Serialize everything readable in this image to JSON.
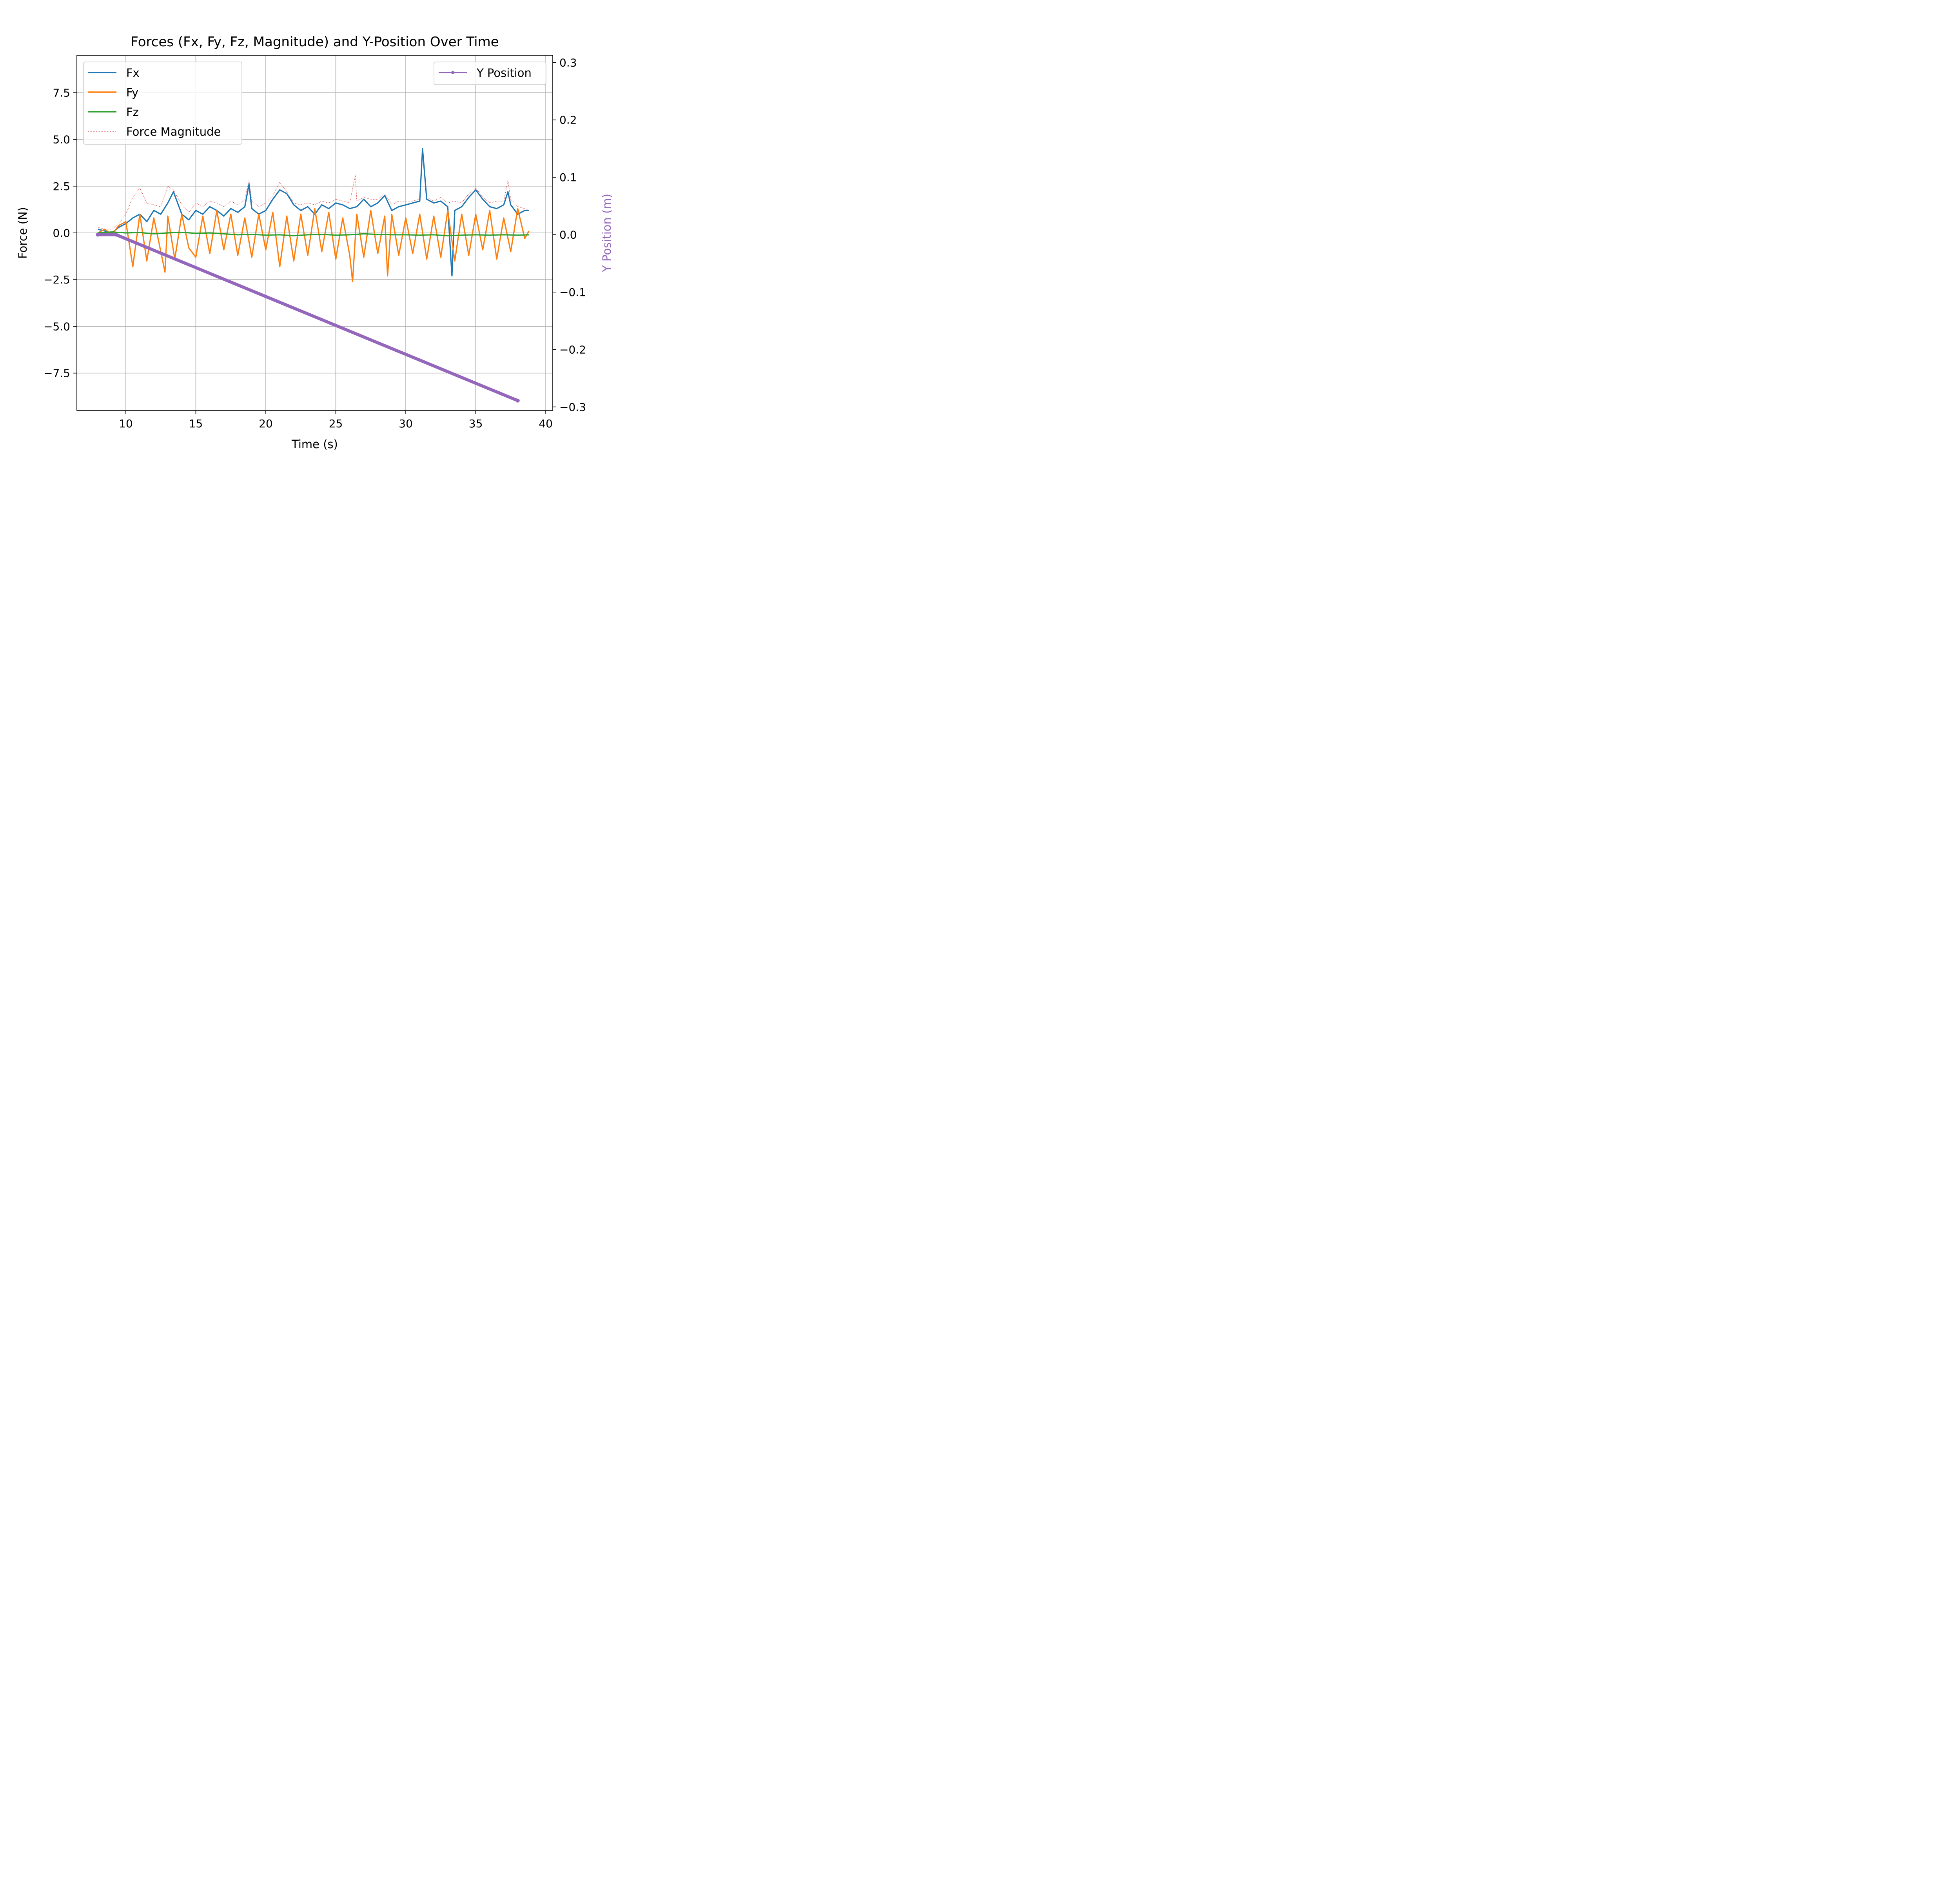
{
  "chart_data": {
    "type": "line",
    "title": "Forces (Fx, Fy, Fz, Magnitude) and Y-Position Over Time",
    "xlabel": "Time (s)",
    "ylabel": "Force (N)",
    "y2label": "Y Position (m)",
    "xlim": [
      6.5,
      40.5
    ],
    "ylim": [
      -9.5,
      9.5
    ],
    "y2lim": [
      -0.3063,
      0.3125
    ],
    "xticks": [
      10,
      15,
      20,
      25,
      30,
      35,
      40
    ],
    "xtick_labels": [
      "10",
      "15",
      "20",
      "25",
      "30",
      "35",
      "40"
    ],
    "yticks": [
      -7.5,
      -5.0,
      -2.5,
      0.0,
      2.5,
      5.0,
      7.5
    ],
    "ytick_labels": [
      "−7.5",
      "−5.0",
      "−2.5",
      "0.0",
      "2.5",
      "5.0",
      "7.5"
    ],
    "y2ticks": [
      -0.3,
      -0.2,
      -0.1,
      0.0,
      0.1,
      0.2,
      0.3
    ],
    "y2tick_labels": [
      "−0.3",
      "−0.2",
      "−0.1",
      "0.0",
      "0.1",
      "0.2",
      "0.3"
    ],
    "grid": true,
    "legend_left_placement": "upper-left",
    "legend_right_placement": "upper-right",
    "series": [
      {
        "name": "Fx",
        "axis": "left",
        "color": "#1f77b4",
        "style": "solid",
        "x": [
          8.0,
          8.5,
          9.0,
          9.5,
          10.0,
          10.5,
          11.0,
          11.5,
          12.0,
          12.5,
          13.0,
          13.4,
          14.0,
          14.5,
          15.0,
          15.5,
          16.0,
          16.5,
          17.0,
          17.5,
          18.0,
          18.5,
          18.8,
          19.0,
          19.5,
          20.0,
          20.5,
          21.0,
          21.5,
          22.0,
          22.5,
          23.0,
          23.5,
          24.0,
          24.5,
          25.0,
          25.5,
          26.0,
          26.5,
          27.0,
          27.5,
          28.0,
          28.5,
          29.0,
          29.5,
          30.0,
          30.5,
          31.0,
          31.2,
          31.5,
          32.0,
          32.5,
          33.0,
          33.3,
          33.5,
          34.0,
          34.5,
          35.0,
          35.5,
          36.0,
          36.5,
          37.0,
          37.3,
          37.5,
          38.0,
          38.5,
          38.8
        ],
        "y": [
          0.2,
          0.1,
          0.0,
          0.3,
          0.5,
          0.8,
          1.0,
          0.6,
          1.2,
          1.0,
          1.6,
          2.2,
          1.0,
          0.7,
          1.2,
          1.0,
          1.4,
          1.2,
          0.9,
          1.3,
          1.1,
          1.4,
          2.6,
          1.3,
          1.0,
          1.2,
          1.8,
          2.3,
          2.1,
          1.5,
          1.2,
          1.4,
          1.0,
          1.5,
          1.3,
          1.6,
          1.5,
          1.3,
          1.4,
          1.8,
          1.4,
          1.6,
          2.0,
          1.2,
          1.4,
          1.5,
          1.6,
          1.7,
          4.5,
          1.8,
          1.6,
          1.7,
          1.4,
          -2.3,
          1.2,
          1.4,
          1.9,
          2.3,
          1.8,
          1.4,
          1.3,
          1.5,
          2.2,
          1.5,
          1.0,
          1.2,
          1.2
        ]
      },
      {
        "name": "Fy",
        "axis": "left",
        "color": "#ff7f0e",
        "style": "solid",
        "x": [
          8.0,
          8.5,
          9.0,
          9.5,
          10.0,
          10.5,
          11.0,
          11.5,
          12.0,
          12.5,
          12.8,
          13.0,
          13.5,
          14.0,
          14.5,
          15.0,
          15.5,
          16.0,
          16.5,
          17.0,
          17.5,
          18.0,
          18.5,
          19.0,
          19.5,
          20.0,
          20.5,
          21.0,
          21.5,
          22.0,
          22.5,
          23.0,
          23.5,
          24.0,
          24.5,
          25.0,
          25.5,
          26.0,
          26.2,
          26.5,
          27.0,
          27.5,
          28.0,
          28.5,
          28.7,
          29.0,
          29.5,
          30.0,
          30.5,
          31.0,
          31.5,
          32.0,
          32.5,
          33.0,
          33.5,
          34.0,
          34.5,
          35.0,
          35.5,
          36.0,
          36.5,
          37.0,
          37.5,
          38.0,
          38.5,
          38.8
        ],
        "y": [
          0.0,
          0.2,
          -0.1,
          0.4,
          0.6,
          -1.8,
          1.0,
          -1.5,
          0.8,
          -1.0,
          -2.1,
          0.9,
          -1.4,
          1.0,
          -0.8,
          -1.3,
          0.9,
          -1.1,
          1.2,
          -0.9,
          1.0,
          -1.2,
          0.8,
          -1.3,
          1.0,
          -0.9,
          1.1,
          -1.8,
          0.9,
          -1.5,
          1.0,
          -1.2,
          1.3,
          -1.0,
          1.1,
          -1.4,
          0.8,
          -1.2,
          -2.6,
          1.0,
          -1.3,
          1.2,
          -1.1,
          0.9,
          -2.3,
          1.0,
          -1.2,
          0.8,
          -1.1,
          1.0,
          -1.4,
          0.9,
          -1.3,
          1.2,
          -1.5,
          1.0,
          -1.2,
          1.0,
          -0.9,
          1.2,
          -1.4,
          0.8,
          -1.0,
          1.3,
          -0.3,
          0.1
        ]
      },
      {
        "name": "Fz",
        "axis": "left",
        "color": "#2ca02c",
        "style": "solid",
        "x": [
          8.0,
          9.0,
          10.0,
          11.0,
          12.0,
          13.0,
          14.0,
          15.0,
          16.0,
          17.0,
          18.0,
          19.0,
          20.0,
          21.0,
          22.0,
          23.0,
          24.0,
          25.0,
          26.0,
          27.0,
          28.0,
          29.0,
          30.0,
          31.0,
          32.0,
          33.0,
          34.0,
          35.0,
          36.0,
          37.0,
          38.0,
          38.8
        ],
        "y": [
          0.0,
          0.05,
          0.0,
          0.02,
          -0.05,
          0.0,
          0.03,
          -0.02,
          0.0,
          -0.05,
          -0.1,
          -0.08,
          -0.12,
          -0.1,
          -0.15,
          -0.1,
          -0.08,
          -0.12,
          -0.1,
          -0.05,
          -0.08,
          -0.1,
          -0.1,
          -0.12,
          -0.1,
          -0.15,
          -0.12,
          -0.1,
          -0.12,
          -0.1,
          -0.12,
          -0.1
        ]
      },
      {
        "name": "Force Magnitude",
        "axis": "left",
        "color": "#d62728",
        "style": "dotted",
        "x": [
          8.0,
          8.5,
          9.0,
          9.5,
          10.0,
          10.5,
          11.0,
          11.5,
          12.0,
          12.5,
          13.0,
          13.4,
          14.0,
          14.5,
          15.0,
          15.5,
          16.0,
          16.5,
          17.0,
          17.5,
          18.0,
          18.5,
          18.8,
          19.0,
          19.5,
          20.0,
          20.5,
          21.0,
          21.5,
          22.0,
          22.5,
          23.0,
          23.5,
          24.0,
          24.5,
          25.0,
          25.5,
          26.0,
          26.4,
          26.5,
          27.0,
          27.5,
          28.0,
          28.5,
          29.0,
          29.5,
          30.0,
          30.5,
          31.0,
          31.2,
          31.5,
          32.0,
          32.5,
          33.0,
          33.5,
          34.0,
          34.5,
          35.0,
          35.5,
          36.0,
          36.5,
          37.0,
          37.3,
          37.5,
          38.0,
          38.5,
          38.8
        ],
        "y": [
          0.3,
          0.2,
          0.2,
          0.5,
          1.0,
          1.9,
          2.4,
          1.6,
          1.5,
          1.4,
          2.5,
          2.3,
          1.5,
          1.1,
          1.6,
          1.4,
          1.7,
          1.6,
          1.4,
          1.7,
          1.5,
          1.8,
          2.8,
          1.7,
          1.4,
          1.6,
          2.0,
          2.7,
          2.2,
          1.6,
          1.5,
          1.6,
          1.5,
          1.7,
          1.6,
          1.8,
          1.7,
          1.6,
          3.1,
          1.7,
          1.9,
          1.8,
          1.8,
          2.1,
          1.5,
          1.7,
          1.7,
          1.7,
          1.8,
          4.5,
          1.9,
          1.7,
          1.9,
          1.6,
          1.7,
          1.6,
          2.1,
          2.4,
          1.9,
          1.6,
          1.7,
          1.7,
          2.8,
          1.8,
          1.4,
          1.3,
          1.2
        ]
      },
      {
        "name": "Y Position",
        "axis": "right",
        "color": "#9467bd",
        "style": "solid-marker",
        "x": [
          8.0,
          9.3,
          38.0
        ],
        "y": [
          0.0,
          0.0,
          -0.289
        ]
      }
    ]
  }
}
